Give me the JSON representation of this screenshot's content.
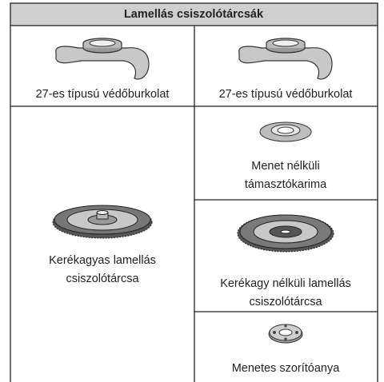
{
  "header": {
    "title": "Lamellás csiszolótárcsák"
  },
  "cells": [
    {
      "lines": [
        "27-es típusú védőburkolat"
      ]
    },
    {
      "lines": [
        "27-es típusú védőburkolat"
      ]
    },
    {
      "lines": [
        "Kerékagyas lamellás",
        "csiszolótárcsa"
      ]
    },
    {
      "lines": [
        "Menet nélküli",
        "támasztókarima"
      ]
    },
    {
      "lines": [
        "Kerékagy nélküli lamellás",
        "csiszolótárcsa"
      ]
    },
    {
      "lines": [
        "Menetes szorítóanya"
      ]
    }
  ]
}
